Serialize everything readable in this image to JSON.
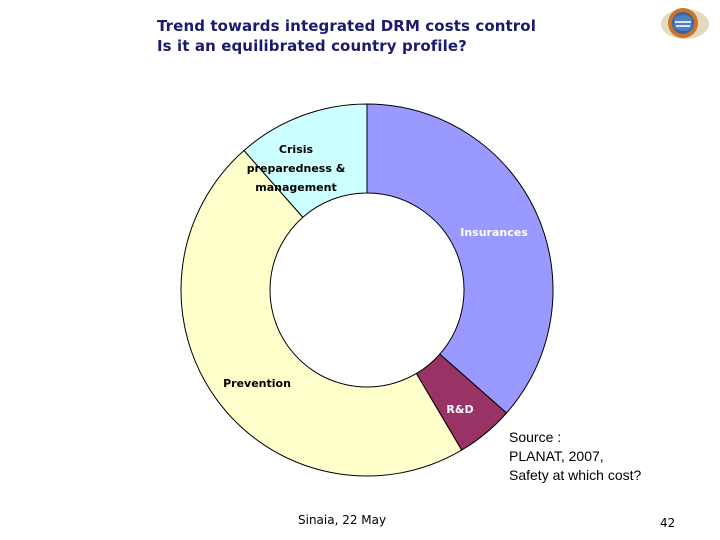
{
  "title": {
    "line1": "Trend towards integrated DRM costs control",
    "line2": "Is it an equilibrated country profile?"
  },
  "chart_data": {
    "type": "pie",
    "variant": "donut",
    "slices": [
      {
        "label": "Insurances",
        "value": 36.5,
        "color": "#9999ff",
        "text_color": "#ffffff"
      },
      {
        "label": "R&D",
        "value": 5.0,
        "color": "#993366",
        "text_color": "#ffffff"
      },
      {
        "label": "Prevention",
        "value": 47.0,
        "color": "#ffffcc",
        "text_color": "#000000"
      },
      {
        "label": "Crisis preparedness & management",
        "value": 11.5,
        "color": "#ccffff",
        "text_color": "#000000"
      }
    ],
    "legend": "none"
  },
  "source": {
    "line1": "Source :",
    "line2": "PLANAT, 2007,",
    "line3": "Safety at which cost?"
  },
  "footer": {
    "left": "Sinaia, 22 May",
    "page": "42"
  },
  "logo": {
    "icon": "conference-logo-icon"
  }
}
